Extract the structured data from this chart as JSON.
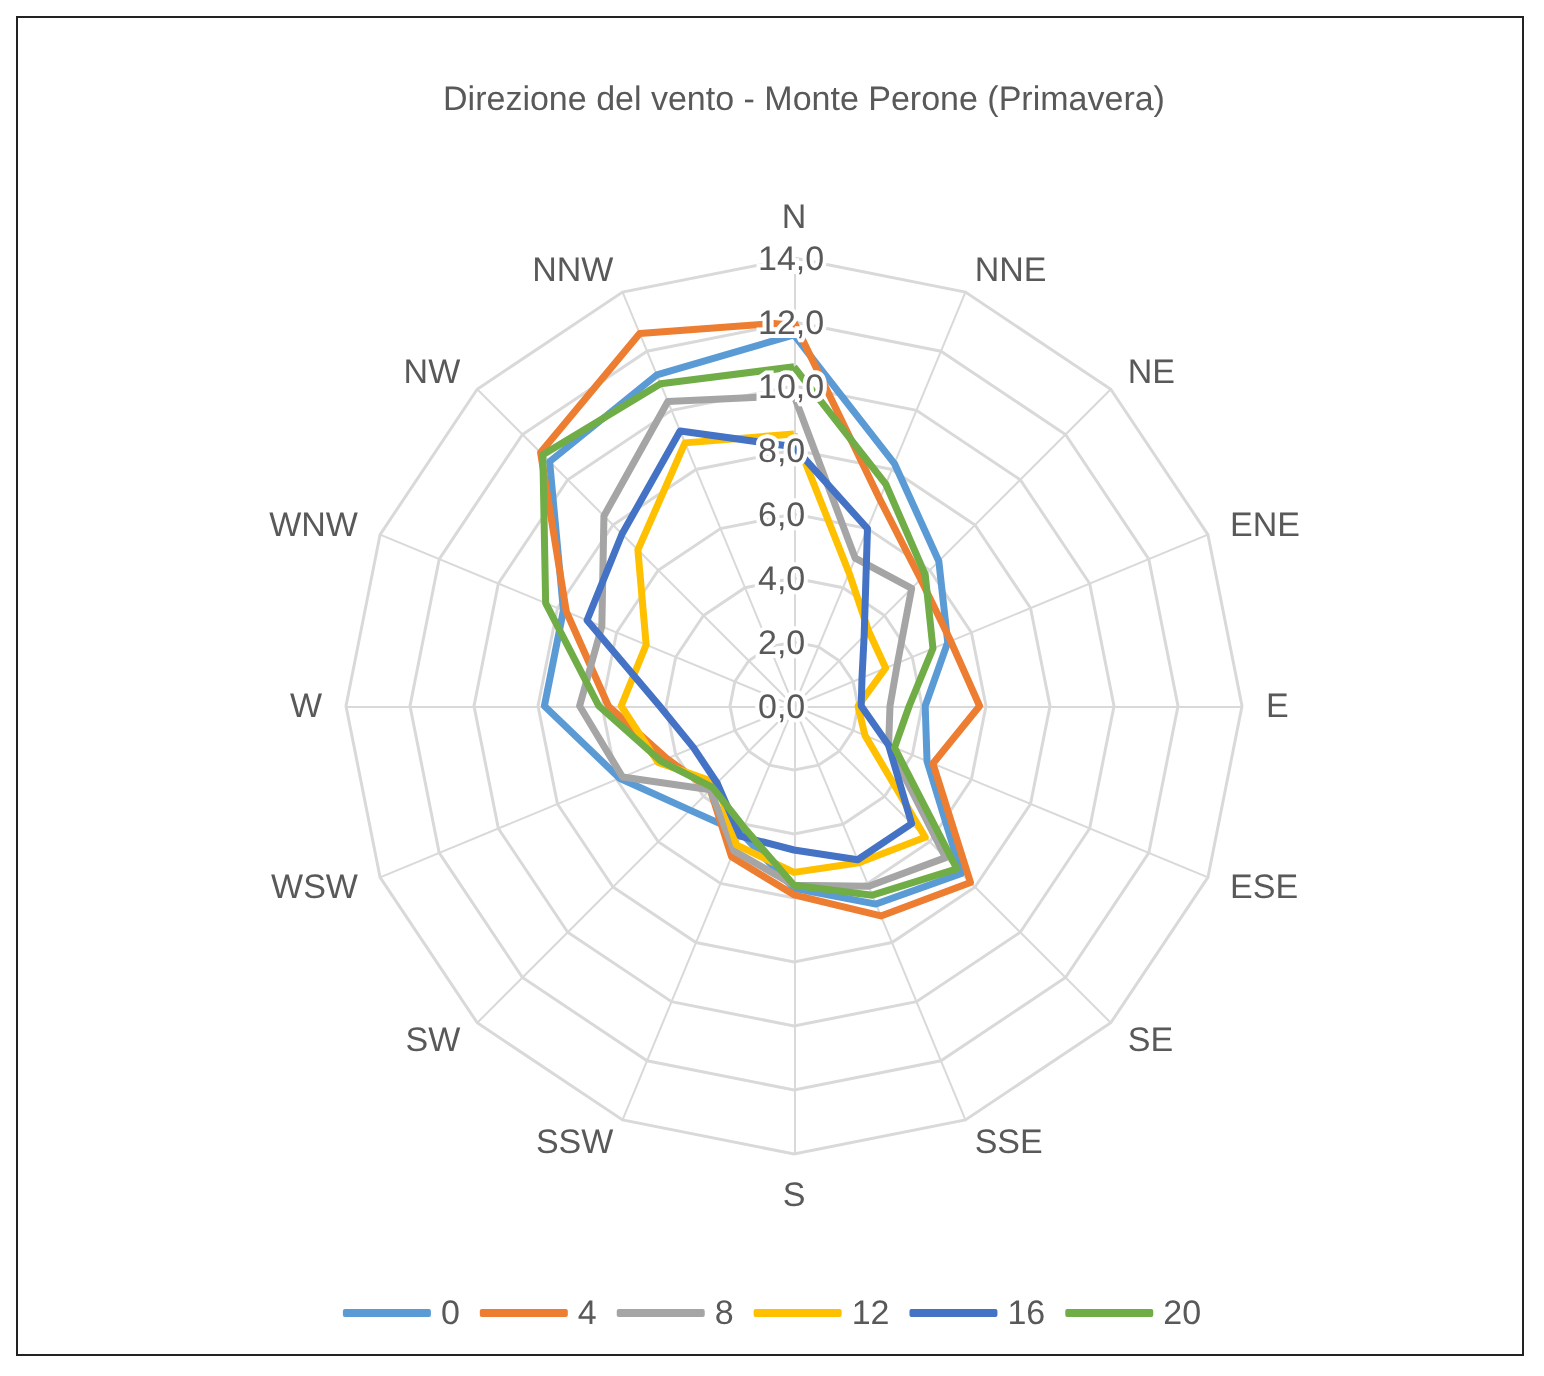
{
  "chart_data": {
    "type": "radar",
    "title": "Direzione del vento - Monte Perone (Primavera)",
    "categories": [
      "N",
      "NNE",
      "NE",
      "ENE",
      "E",
      "ESE",
      "SE",
      "SSE",
      "S",
      "SSW",
      "SW",
      "WSW",
      "W",
      "WNW",
      "NW",
      "NNW"
    ],
    "ylim": [
      0,
      14
    ],
    "yticks": [
      {
        "value": 0,
        "label": "0,0"
      },
      {
        "value": 2,
        "label": "2,0"
      },
      {
        "value": 4,
        "label": "4,0"
      },
      {
        "value": 6,
        "label": "6,0"
      },
      {
        "value": 8,
        "label": "8,0"
      },
      {
        "value": 10,
        "label": "10,0"
      },
      {
        "value": 12,
        "label": "12,0"
      },
      {
        "value": 14,
        "label": "14,0"
      }
    ],
    "grid": true,
    "legend": "bottom",
    "marker": "none",
    "line_style": "solid",
    "series": [
      {
        "name": "0",
        "color": "#5b9bd5",
        "values": [
          11.6,
          8.2,
          6.4,
          5.2,
          4.1,
          4.5,
          7.4,
          6.7,
          5.7,
          4.3,
          4.6,
          5.9,
          7.8,
          7.8,
          10.8,
          11.2
        ]
      },
      {
        "name": "4",
        "color": "#ed7d31",
        "values": [
          12.0,
          7.0,
          5.6,
          5.3,
          5.8,
          4.7,
          7.8,
          7.1,
          5.9,
          5.1,
          3.7,
          4.3,
          5.8,
          7.7,
          11.2,
          12.6
        ]
      },
      {
        "name": "8",
        "color": "#a5a5a5",
        "values": [
          9.7,
          5.0,
          5.2,
          3.5,
          3.0,
          3.2,
          6.7,
          6.1,
          5.6,
          4.9,
          3.7,
          5.8,
          6.7,
          6.5,
          8.4,
          10.3
        ]
      },
      {
        "name": "12",
        "color": "#ffc000",
        "values": [
          8.5,
          4.5,
          3.3,
          3.1,
          2.0,
          2.4,
          5.8,
          5.3,
          5.2,
          4.7,
          3.4,
          4.6,
          5.4,
          5.0,
          6.9,
          8.9
        ]
      },
      {
        "name": "16",
        "color": "#4472c4",
        "values": [
          8.1,
          6.0,
          3.1,
          2.3,
          2.1,
          3.2,
          5.2,
          5.2,
          4.5,
          4.4,
          3.4,
          3.4,
          4.2,
          7.0,
          7.6,
          9.3
        ]
      },
      {
        "name": "20",
        "color": "#70ad47",
        "values": [
          10.6,
          7.5,
          5.8,
          4.7,
          3.6,
          3.4,
          7.2,
          6.4,
          5.6,
          4.1,
          3.6,
          4.5,
          6.1,
          8.4,
          11.1,
          10.9
        ]
      }
    ]
  }
}
